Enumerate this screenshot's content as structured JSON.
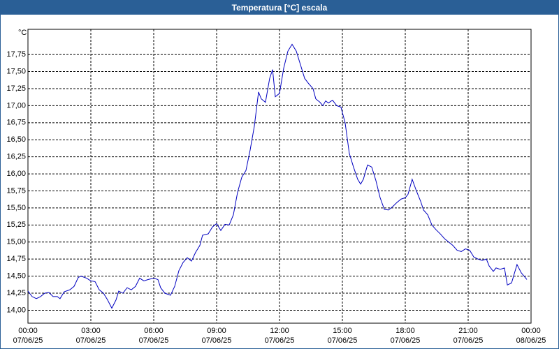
{
  "chart_data": {
    "type": "line",
    "title": "Temperatura [°C] escala",
    "y_label": "°C",
    "x": [
      0,
      0.2,
      0.4,
      0.6,
      0.8,
      1.0,
      1.2,
      1.4,
      1.53,
      1.73,
      2,
      2.2,
      2.4,
      2.53,
      2.8,
      3,
      3.2,
      3.4,
      3.6,
      3.8,
      4,
      4.2,
      4.33,
      4.53,
      4.73,
      4.93,
      5.13,
      5.33,
      5.53,
      5.73,
      6,
      6.2,
      6.33,
      6.53,
      6.8,
      7,
      7.2,
      7.4,
      7.6,
      7.8,
      8,
      8.2,
      8.33,
      8.6,
      8.8,
      9,
      9.2,
      9.4,
      9.6,
      9.8,
      10,
      10.2,
      10.4,
      10.6,
      10.8,
      11,
      11.13,
      11.33,
      11.53,
      11.67,
      11.8,
      12,
      12.2,
      12.4,
      12.6,
      12.8,
      13,
      13.2,
      13.4,
      13.6,
      13.73,
      13.93,
      14.07,
      14.2,
      14.33,
      14.53,
      14.73,
      14.93,
      15.13,
      15.33,
      15.53,
      15.73,
      15.87,
      16,
      16.2,
      16.4,
      16.6,
      16.8,
      17,
      17.2,
      17.4,
      17.6,
      17.8,
      18,
      18.13,
      18.33,
      18.53,
      18.73,
      18.87,
      19.07,
      19.27,
      19.47,
      19.67,
      19.87,
      20.07,
      20.27,
      20.47,
      20.67,
      20.87,
      21.07,
      21.27,
      21.47,
      21.67,
      21.87,
      22,
      22.2,
      22.33,
      22.53,
      22.73,
      22.87,
      23.07,
      23.33,
      23.53,
      23.8
    ],
    "series": [
      {
        "name": "Temperatura",
        "color": "#0000c0",
        "values": [
          14.28,
          14.2,
          14.17,
          14.2,
          14.25,
          14.26,
          14.2,
          14.2,
          14.17,
          14.27,
          14.3,
          14.35,
          14.48,
          14.5,
          14.47,
          14.43,
          14.42,
          14.3,
          14.25,
          14.15,
          14.03,
          14.15,
          14.28,
          14.25,
          14.33,
          14.3,
          14.35,
          14.47,
          14.43,
          14.45,
          14.47,
          14.45,
          14.33,
          14.25,
          14.22,
          14.35,
          14.58,
          14.7,
          14.77,
          14.72,
          14.85,
          14.95,
          15.1,
          15.12,
          15.22,
          15.27,
          15.17,
          15.26,
          15.25,
          15.4,
          15.73,
          15.95,
          16.05,
          16.35,
          16.7,
          17.2,
          17.1,
          17.05,
          17.4,
          17.53,
          17.13,
          17.18,
          17.55,
          17.8,
          17.9,
          17.8,
          17.6,
          17.4,
          17.32,
          17.25,
          17.1,
          17.05,
          17.0,
          17.07,
          17.04,
          17.08,
          17.0,
          16.98,
          16.75,
          16.3,
          16.1,
          15.92,
          15.85,
          15.92,
          16.13,
          16.1,
          15.9,
          15.65,
          15.48,
          15.47,
          15.52,
          15.58,
          15.63,
          15.65,
          15.7,
          15.92,
          15.75,
          15.6,
          15.47,
          15.4,
          15.25,
          15.18,
          15.12,
          15.05,
          15.0,
          14.95,
          14.88,
          14.86,
          14.9,
          14.88,
          14.78,
          14.75,
          14.73,
          14.75,
          14.65,
          14.57,
          14.62,
          14.6,
          14.62,
          14.37,
          14.4,
          14.67,
          14.55,
          14.45
        ]
      }
    ],
    "xlim": [
      0,
      24
    ],
    "xticks": [
      {
        "value": 0,
        "label": "00:00\n07/06/25"
      },
      {
        "value": 3,
        "label": "03:00\n07/06/25"
      },
      {
        "value": 6,
        "label": "06:00\n07/06/25"
      },
      {
        "value": 9,
        "label": "09:00\n07/06/25"
      },
      {
        "value": 12,
        "label": "12:00\n07/06/25"
      },
      {
        "value": 15,
        "label": "15:00\n07/06/25"
      },
      {
        "value": 18,
        "label": "18:00\n07/06/25"
      },
      {
        "value": 21,
        "label": "21:00\n07/06/25"
      },
      {
        "value": 24,
        "label": "00:00\n08/06/25"
      }
    ],
    "ylim": [
      13.81,
      18.12
    ],
    "yticks": [
      {
        "value": 14,
        "label": "14,00"
      },
      {
        "value": 14.25,
        "label": "14,25"
      },
      {
        "value": 14.5,
        "label": "14,50"
      },
      {
        "value": 14.75,
        "label": "14,75"
      },
      {
        "value": 15,
        "label": "15,00"
      },
      {
        "value": 15.25,
        "label": "15,25"
      },
      {
        "value": 15.5,
        "label": "15,50"
      },
      {
        "value": 15.75,
        "label": "15,75"
      },
      {
        "value": 16,
        "label": "16,00"
      },
      {
        "value": 16.25,
        "label": "16,25"
      },
      {
        "value": 16.5,
        "label": "16,50"
      },
      {
        "value": 16.75,
        "label": "16,75"
      },
      {
        "value": 17,
        "label": "17,00"
      },
      {
        "value": 17.25,
        "label": "17,25"
      },
      {
        "value": 17.5,
        "label": "17,50"
      },
      {
        "value": 17.75,
        "label": "17,75"
      }
    ],
    "grid": true
  }
}
